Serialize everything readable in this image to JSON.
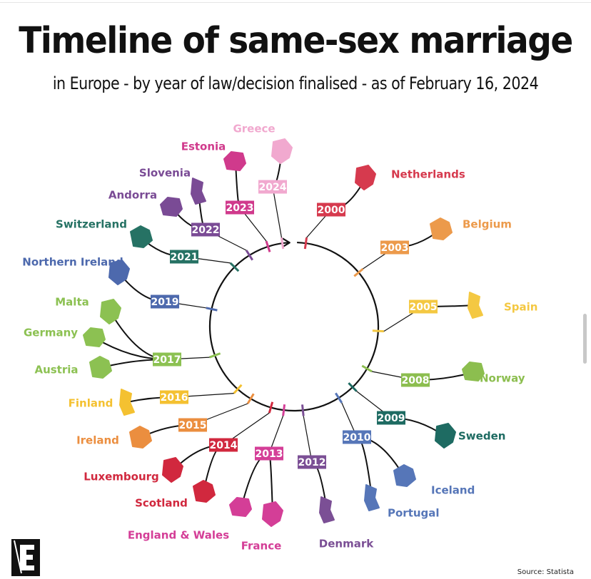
{
  "header": {
    "title": "Timeline of same-sex marriage",
    "subtitle": "in Europe - by year of law/decision finalised - as of February 16, 2024"
  },
  "footer": {
    "source": "Source: Statista"
  },
  "logo": {
    "icon": "publisher-e-logo-icon"
  },
  "entries": [
    {
      "year": "2000",
      "countries": [
        "Netherlands"
      ],
      "color": "#d63a4e"
    },
    {
      "year": "2003",
      "countries": [
        "Belgium"
      ],
      "color": "#ec9a4b"
    },
    {
      "year": "2005",
      "countries": [
        "Spain"
      ],
      "color": "#f4c842"
    },
    {
      "year": "2008",
      "countries": [
        "Norway"
      ],
      "color": "#8cbe4f"
    },
    {
      "year": "2009",
      "countries": [
        "Sweden"
      ],
      "color": "#1e6b62"
    },
    {
      "year": "2010",
      "countries": [
        "Iceland",
        "Portugal"
      ],
      "color": "#5676b8"
    },
    {
      "year": "2012",
      "countries": [
        "Denmark"
      ],
      "color": "#7b4f95"
    },
    {
      "year": "2013",
      "countries": [
        "England & Wales",
        "France"
      ],
      "color": "#d43e97"
    },
    {
      "year": "2014",
      "countries": [
        "Luxembourg",
        "Scotland"
      ],
      "color": "#d1283e"
    },
    {
      "year": "2015",
      "countries": [
        "Ireland"
      ],
      "color": "#eb8e3f"
    },
    {
      "year": "2016",
      "countries": [
        "Finland"
      ],
      "color": "#f4c131"
    },
    {
      "year": "2017",
      "countries": [
        "Germany",
        "Malta",
        "Austria"
      ],
      "color": "#8cc152"
    },
    {
      "year": "2019",
      "countries": [
        "Northern Ireland"
      ],
      "color": "#4d69ad"
    },
    {
      "year": "2021",
      "countries": [
        "Switzerland"
      ],
      "color": "#267264"
    },
    {
      "year": "2022",
      "countries": [
        "Slovenia",
        "Andorra"
      ],
      "color": "#7a4b95"
    },
    {
      "year": "2023",
      "countries": [
        "Estonia"
      ],
      "color": "#d03a8c"
    },
    {
      "year": "2024",
      "countries": [
        "Greece"
      ],
      "color": "#f1a9cf"
    }
  ]
}
